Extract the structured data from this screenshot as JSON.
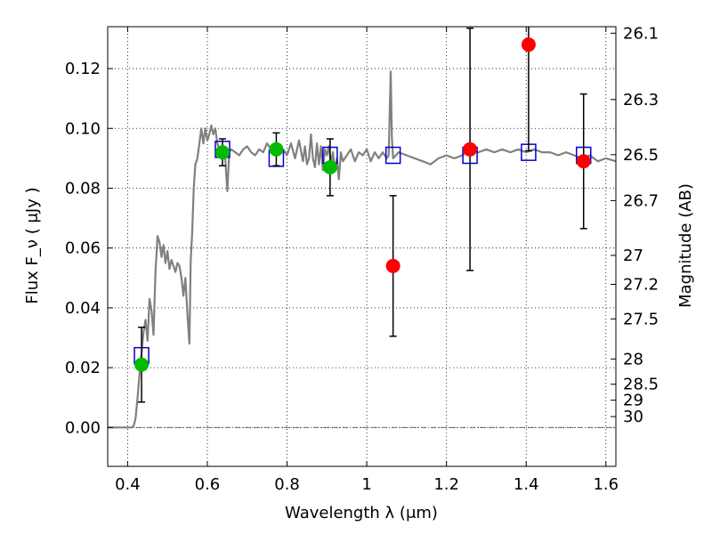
{
  "chart_data": {
    "type": "scatter",
    "xlabel": "Wavelength  λ (μm)",
    "ylabel": "Flux  F_ν  ( μJy )",
    "ylabel_right": "Magnitude (AB)",
    "xlim": [
      0.35,
      1.625
    ],
    "ylim": [
      -0.013,
      0.134
    ],
    "grid": true,
    "x_ticks": [
      0.4,
      0.6,
      0.8,
      1.0,
      1.2,
      1.4,
      1.6
    ],
    "x_tick_labels": [
      "0.4",
      "0.6",
      "0.8",
      "1",
      "1.2",
      "1.4",
      "1.6"
    ],
    "y_ticks": [
      0.0,
      0.02,
      0.04,
      0.06,
      0.08,
      0.1,
      0.12
    ],
    "y_tick_labels": [
      "0.00",
      "0.02",
      "0.04",
      "0.06",
      "0.08",
      "0.10",
      "0.12"
    ],
    "right_ticks": [
      {
        "mag": 26.1,
        "label": "26.1"
      },
      {
        "mag": 26.3,
        "label": "26.3"
      },
      {
        "mag": 26.5,
        "label": "26.5"
      },
      {
        "mag": 26.7,
        "label": "26.7"
      },
      {
        "mag": 27.0,
        "label": "27"
      },
      {
        "mag": 27.2,
        "label": "27.2"
      },
      {
        "mag": 27.5,
        "label": "27.5"
      },
      {
        "mag": 28.0,
        "label": "28"
      },
      {
        "mag": 28.5,
        "label": "28.5"
      },
      {
        "mag": 29.0,
        "label": "29"
      },
      {
        "mag": 30.0,
        "label": "30"
      }
    ],
    "series": [
      {
        "kind": "line",
        "color": "#808080",
        "points": [
          [
            0.35,
            0.0
          ],
          [
            0.41,
            0.0
          ],
          [
            0.415,
            0.0005
          ],
          [
            0.42,
            0.003
          ],
          [
            0.425,
            0.01
          ],
          [
            0.43,
            0.018
          ],
          [
            0.435,
            0.025
          ],
          [
            0.44,
            0.032
          ],
          [
            0.445,
            0.036
          ],
          [
            0.45,
            0.029
          ],
          [
            0.455,
            0.043
          ],
          [
            0.46,
            0.039
          ],
          [
            0.465,
            0.031
          ],
          [
            0.47,
            0.052
          ],
          [
            0.475,
            0.064
          ],
          [
            0.48,
            0.062
          ],
          [
            0.485,
            0.057
          ],
          [
            0.49,
            0.061
          ],
          [
            0.495,
            0.055
          ],
          [
            0.5,
            0.059
          ],
          [
            0.505,
            0.053
          ],
          [
            0.51,
            0.056
          ],
          [
            0.515,
            0.054
          ],
          [
            0.52,
            0.052
          ],
          [
            0.525,
            0.055
          ],
          [
            0.53,
            0.054
          ],
          [
            0.535,
            0.05
          ],
          [
            0.54,
            0.044
          ],
          [
            0.545,
            0.05
          ],
          [
            0.55,
            0.038
          ],
          [
            0.555,
            0.028
          ],
          [
            0.558,
            0.055
          ],
          [
            0.562,
            0.065
          ],
          [
            0.566,
            0.08
          ],
          [
            0.57,
            0.088
          ],
          [
            0.575,
            0.09
          ],
          [
            0.58,
            0.095
          ],
          [
            0.585,
            0.1
          ],
          [
            0.59,
            0.095
          ],
          [
            0.595,
            0.1
          ],
          [
            0.6,
            0.096
          ],
          [
            0.605,
            0.098
          ],
          [
            0.61,
            0.101
          ],
          [
            0.615,
            0.098
          ],
          [
            0.62,
            0.1
          ],
          [
            0.625,
            0.095
          ],
          [
            0.63,
            0.093
          ],
          [
            0.635,
            0.091
          ],
          [
            0.64,
            0.094
          ],
          [
            0.645,
            0.09
          ],
          [
            0.65,
            0.079
          ],
          [
            0.655,
            0.092
          ],
          [
            0.66,
            0.093
          ],
          [
            0.67,
            0.092
          ],
          [
            0.68,
            0.091
          ],
          [
            0.69,
            0.093
          ],
          [
            0.7,
            0.094
          ],
          [
            0.71,
            0.092
          ],
          [
            0.72,
            0.091
          ],
          [
            0.73,
            0.093
          ],
          [
            0.74,
            0.092
          ],
          [
            0.75,
            0.095
          ],
          [
            0.76,
            0.093
          ],
          [
            0.77,
            0.094
          ],
          [
            0.78,
            0.092
          ],
          [
            0.79,
            0.093
          ],
          [
            0.8,
            0.091
          ],
          [
            0.81,
            0.095
          ],
          [
            0.82,
            0.09
          ],
          [
            0.83,
            0.096
          ],
          [
            0.84,
            0.089
          ],
          [
            0.845,
            0.094
          ],
          [
            0.85,
            0.088
          ],
          [
            0.855,
            0.09
          ],
          [
            0.86,
            0.098
          ],
          [
            0.865,
            0.09
          ],
          [
            0.87,
            0.087
          ],
          [
            0.875,
            0.095
          ],
          [
            0.88,
            0.088
          ],
          [
            0.885,
            0.094
          ],
          [
            0.89,
            0.086
          ],
          [
            0.895,
            0.093
          ],
          [
            0.9,
            0.091
          ],
          [
            0.905,
            0.094
          ],
          [
            0.91,
            0.088
          ],
          [
            0.915,
            0.092
          ],
          [
            0.92,
            0.086
          ],
          [
            0.925,
            0.09
          ],
          [
            0.93,
            0.083
          ],
          [
            0.935,
            0.092
          ],
          [
            0.94,
            0.089
          ],
          [
            0.95,
            0.091
          ],
          [
            0.96,
            0.093
          ],
          [
            0.97,
            0.089
          ],
          [
            0.98,
            0.092
          ],
          [
            0.99,
            0.091
          ],
          [
            1.0,
            0.093
          ],
          [
            1.01,
            0.089
          ],
          [
            1.02,
            0.092
          ],
          [
            1.03,
            0.09
          ],
          [
            1.04,
            0.092
          ],
          [
            1.05,
            0.09
          ],
          [
            1.055,
            0.091
          ],
          [
            1.06,
            0.119
          ],
          [
            1.063,
            0.097
          ],
          [
            1.066,
            0.09
          ],
          [
            1.08,
            0.092
          ],
          [
            1.1,
            0.091
          ],
          [
            1.12,
            0.09
          ],
          [
            1.14,
            0.089
          ],
          [
            1.16,
            0.088
          ],
          [
            1.18,
            0.09
          ],
          [
            1.2,
            0.091
          ],
          [
            1.22,
            0.09
          ],
          [
            1.24,
            0.091
          ],
          [
            1.26,
            0.093
          ],
          [
            1.28,
            0.092
          ],
          [
            1.3,
            0.093
          ],
          [
            1.32,
            0.092
          ],
          [
            1.34,
            0.093
          ],
          [
            1.36,
            0.092
          ],
          [
            1.38,
            0.093
          ],
          [
            1.4,
            0.092
          ],
          [
            1.42,
            0.093
          ],
          [
            1.44,
            0.092
          ],
          [
            1.46,
            0.092
          ],
          [
            1.48,
            0.091
          ],
          [
            1.5,
            0.092
          ],
          [
            1.52,
            0.091
          ],
          [
            1.54,
            0.09
          ],
          [
            1.56,
            0.091
          ],
          [
            1.58,
            0.089
          ],
          [
            1.6,
            0.09
          ],
          [
            1.625,
            0.089
          ]
        ]
      },
      {
        "kind": "open-square",
        "color": "#0000cc",
        "points": [
          [
            0.435,
            0.024
          ],
          [
            0.638,
            0.093
          ],
          [
            0.773,
            0.09
          ],
          [
            0.908,
            0.091
          ],
          [
            1.066,
            0.091
          ],
          [
            1.259,
            0.091
          ],
          [
            1.406,
            0.092
          ],
          [
            1.544,
            0.091
          ]
        ]
      },
      {
        "kind": "filled-circle",
        "color": "#00bb00",
        "points": [
          {
            "x": 0.435,
            "y": 0.021,
            "err": 0.0125
          },
          {
            "x": 0.638,
            "y": 0.092,
            "err": 0.0045
          },
          {
            "x": 0.773,
            "y": 0.093,
            "err": 0.0055
          },
          {
            "x": 0.908,
            "y": 0.087,
            "err": 0.0095
          }
        ]
      },
      {
        "kind": "filled-circle",
        "color": "#ff0000",
        "points": [
          {
            "x": 1.066,
            "y": 0.054,
            "err": 0.0235
          },
          {
            "x": 1.259,
            "y": 0.093,
            "err": 0.0405
          },
          {
            "x": 1.406,
            "y": 0.128,
            "err": 0.0355
          },
          {
            "x": 1.544,
            "y": 0.089,
            "err": 0.0225
          }
        ]
      }
    ]
  }
}
